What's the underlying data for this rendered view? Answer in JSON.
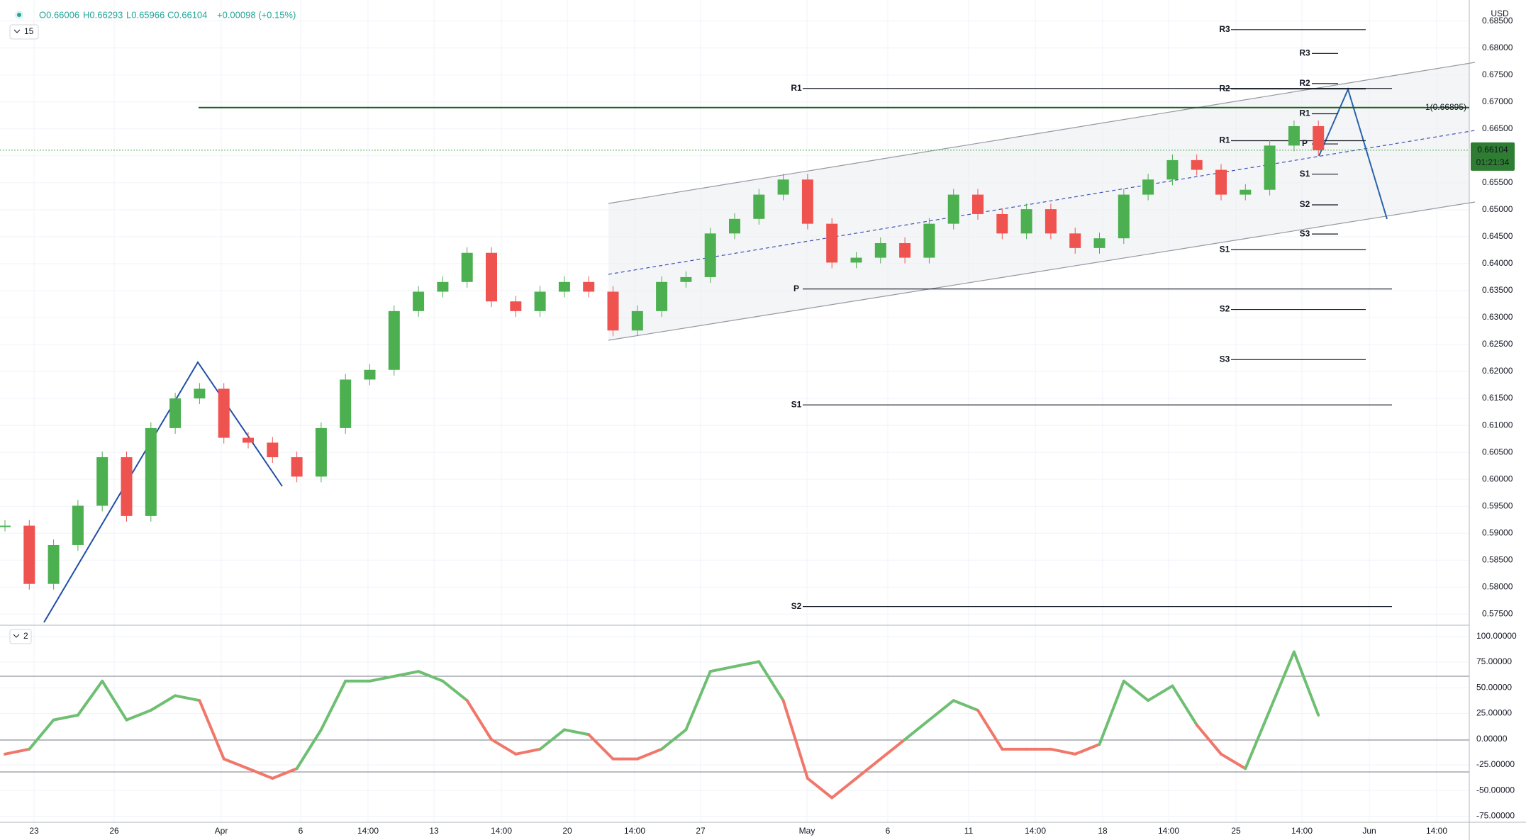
{
  "toolbar": {
    "open": "O0.66006",
    "high": "H0.66293",
    "low": "L0.65966",
    "close": "C0.66104",
    "change": "+0.00098 (+0.15%)",
    "interval": "15"
  },
  "chart_data": [
    {
      "type": "candlestick",
      "currency": "USD",
      "up_color": "#4caf50",
      "down_color": "#ef5350",
      "values": [
        0.5914,
        0.5806,
        0.5878,
        0.5951,
        0.6041,
        0.5932,
        0.6095,
        0.615,
        0.6168,
        0.6077,
        0.6068,
        0.6041,
        0.6005,
        0.6095,
        0.6185,
        0.6203,
        0.6312,
        0.6348,
        0.6366,
        0.642,
        0.633,
        0.6312,
        0.6348,
        0.6366,
        0.6348,
        0.6276,
        0.6312,
        0.6366,
        0.6375,
        0.6456,
        0.6483,
        0.6528,
        0.6556,
        0.6474,
        0.6402,
        0.6411,
        0.6438,
        0.6411,
        0.6474,
        0.6528,
        0.6492,
        0.6456,
        0.6501,
        0.6456,
        0.6429,
        0.6447,
        0.6528,
        0.6556,
        0.6592,
        0.6574,
        0.6528,
        0.6537,
        0.6619,
        0.6655,
        0.66104
      ],
      "ylim": [
        0.5732,
        0.6889
      ],
      "yticks": [
        {
          "value": 0.685,
          "label": "0.68500"
        },
        {
          "value": 0.68,
          "label": "0.68000"
        },
        {
          "value": 0.675,
          "label": "0.67500"
        },
        {
          "value": 0.67,
          "label": "0.67000"
        },
        {
          "value": 0.665,
          "label": "0.66500"
        },
        {
          "value": 0.66,
          "label": "0.66000"
        },
        {
          "value": 0.655,
          "label": "0.65500"
        },
        {
          "value": 0.65,
          "label": "0.65000"
        },
        {
          "value": 0.645,
          "label": "0.64500"
        },
        {
          "value": 0.64,
          "label": "0.64000"
        },
        {
          "value": 0.635,
          "label": "0.63500"
        },
        {
          "value": 0.63,
          "label": "0.63000"
        },
        {
          "value": 0.625,
          "label": "0.62500"
        },
        {
          "value": 0.62,
          "label": "0.62000"
        },
        {
          "value": 0.615,
          "label": "0.61500"
        },
        {
          "value": 0.61,
          "label": "0.61000"
        },
        {
          "value": 0.605,
          "label": "0.60500"
        },
        {
          "value": 0.6,
          "label": "0.60000"
        },
        {
          "value": 0.595,
          "label": "0.59500"
        },
        {
          "value": 0.59,
          "label": "0.59000"
        },
        {
          "value": 0.585,
          "label": "0.58500"
        },
        {
          "value": 0.58,
          "label": "0.58000"
        },
        {
          "value": 0.575,
          "label": "0.57500"
        }
      ],
      "last_price": 0.66104,
      "countdown": "01:21:34",
      "fib": {
        "label": "1(0.66895)",
        "value": 0.66895
      },
      "levels": [
        {
          "label": "R1",
          "value": 0.6725
        },
        {
          "label": "P",
          "value": 0.6353
        },
        {
          "label": "S1",
          "value": 0.6138
        },
        {
          "label": "S2",
          "value": 0.5764
        },
        {
          "label": "R3",
          "value": 0.6834
        },
        {
          "label": "R2",
          "value": 0.6724
        },
        {
          "label": "R1",
          "value": 0.6628
        },
        {
          "label": "S1",
          "value": 0.6426
        },
        {
          "label": "S2",
          "value": 0.6315
        },
        {
          "label": "S3",
          "value": 0.6222
        },
        {
          "label": "R3",
          "value": 0.679
        },
        {
          "label": "R2",
          "value": 0.6734
        },
        {
          "label": "R1",
          "value": 0.6678
        },
        {
          "label": "P",
          "value": 0.6622
        },
        {
          "label": "S1",
          "value": 0.6566
        },
        {
          "label": "S2",
          "value": 0.6509
        },
        {
          "label": "S3",
          "value": 0.6455
        }
      ],
      "x_labels": [
        "23",
        "26",
        "Apr",
        "6",
        "14:00",
        "13",
        "14:00",
        "20",
        "14:00",
        "27",
        "May",
        "6",
        "11",
        "14:00",
        "18",
        "14:00",
        "25",
        "14:00",
        "Jun",
        "14:00"
      ]
    },
    {
      "type": "line",
      "label": "2",
      "up_color": "#6fbf73",
      "down_color": "#f0776a",
      "values": [
        -14.5,
        -9.7,
        18.7,
        23.4,
        56.5,
        18.7,
        28.1,
        42.3,
        37.6,
        -19.2,
        -28.6,
        -38.1,
        -28.6,
        9.2,
        56.5,
        56.5,
        61.2,
        65.9,
        56.5,
        37.6,
        -0.3,
        -14.5,
        -9.7,
        9.2,
        4.5,
        -19.2,
        -19.2,
        -9.7,
        9.2,
        65.9,
        70.7,
        75.4,
        37.6,
        -38.1,
        -57,
        -38.1,
        -19.2,
        -0.3,
        18.7,
        37.6,
        28.1,
        -9.7,
        -9.7,
        -9.7,
        -14.5,
        -5,
        56.5,
        37.6,
        51.8,
        13.9,
        -14.5,
        -28.6,
        28.1,
        84.9,
        23.4
      ],
      "ylim": [
        -76,
        106
      ],
      "yticks": [
        {
          "value": 100,
          "label": "100.00000"
        },
        {
          "value": 75,
          "label": "75.00000"
        },
        {
          "value": 50,
          "label": "50.00000"
        },
        {
          "value": 25,
          "label": "25.00000"
        },
        {
          "value": 0,
          "label": "0.00000"
        },
        {
          "value": -25,
          "label": "-25.00000"
        },
        {
          "value": -50,
          "label": "-50.00000"
        },
        {
          "value": -75,
          "label": "-75.00000"
        }
      ]
    }
  ]
}
